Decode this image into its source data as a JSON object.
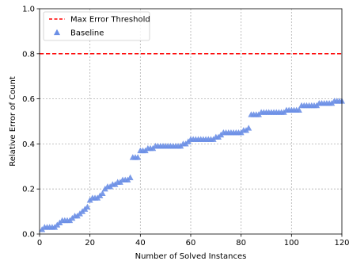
{
  "chart_data": {
    "type": "scatter",
    "xlabel": "Number of Solved Instances",
    "ylabel": "Relative Error of Count",
    "xlim": [
      0,
      120
    ],
    "ylim": [
      0,
      1.0
    ],
    "xticks": [
      "0",
      "20",
      "40",
      "60",
      "80",
      "100",
      "120"
    ],
    "yticks": [
      "0.0",
      "0.2",
      "0.4",
      "0.6",
      "0.8",
      "1.0"
    ],
    "grid": true,
    "legend_position": "top-left",
    "threshold": {
      "name": "Max Error Threshold",
      "value": 0.8,
      "color": "#ff0000",
      "style": "dashed"
    },
    "series": [
      {
        "name": "Baseline",
        "marker": "triangle",
        "color": "#6b8fe6",
        "x": [
          1,
          2,
          3,
          4,
          5,
          6,
          7,
          8,
          9,
          10,
          11,
          12,
          13,
          14,
          15,
          16,
          17,
          18,
          19,
          20,
          21,
          22,
          23,
          24,
          25,
          26,
          27,
          28,
          29,
          30,
          31,
          32,
          33,
          34,
          35,
          36,
          37,
          38,
          39,
          40,
          41,
          42,
          43,
          44,
          45,
          46,
          47,
          48,
          49,
          50,
          51,
          52,
          53,
          54,
          55,
          56,
          57,
          58,
          59,
          60,
          61,
          62,
          63,
          64,
          65,
          66,
          67,
          68,
          69,
          70,
          71,
          72,
          73,
          74,
          75,
          76,
          77,
          78,
          79,
          80,
          81,
          82,
          83,
          84,
          85,
          86,
          87,
          88,
          89,
          90,
          91,
          92,
          93,
          94,
          95,
          96,
          97,
          98,
          99,
          100,
          101,
          102,
          103,
          104,
          105,
          106,
          107,
          108,
          109,
          110,
          111,
          112,
          113,
          114,
          115,
          116,
          117,
          118,
          119,
          120
        ],
        "y": [
          0.02,
          0.03,
          0.03,
          0.03,
          0.03,
          0.03,
          0.04,
          0.05,
          0.06,
          0.06,
          0.06,
          0.06,
          0.07,
          0.08,
          0.08,
          0.09,
          0.1,
          0.11,
          0.12,
          0.15,
          0.16,
          0.16,
          0.16,
          0.17,
          0.18,
          0.2,
          0.21,
          0.21,
          0.22,
          0.22,
          0.23,
          0.23,
          0.24,
          0.24,
          0.24,
          0.25,
          0.34,
          0.34,
          0.34,
          0.37,
          0.37,
          0.37,
          0.38,
          0.38,
          0.38,
          0.39,
          0.39,
          0.39,
          0.39,
          0.39,
          0.39,
          0.39,
          0.39,
          0.39,
          0.39,
          0.39,
          0.4,
          0.4,
          0.41,
          0.42,
          0.42,
          0.42,
          0.42,
          0.42,
          0.42,
          0.42,
          0.42,
          0.42,
          0.42,
          0.43,
          0.43,
          0.44,
          0.45,
          0.45,
          0.45,
          0.45,
          0.45,
          0.45,
          0.45,
          0.45,
          0.46,
          0.46,
          0.47,
          0.53,
          0.53,
          0.53,
          0.53,
          0.54,
          0.54,
          0.54,
          0.54,
          0.54,
          0.54,
          0.54,
          0.54,
          0.54,
          0.54,
          0.55,
          0.55,
          0.55,
          0.55,
          0.55,
          0.55,
          0.57,
          0.57,
          0.57,
          0.57,
          0.57,
          0.57,
          0.57,
          0.58,
          0.58,
          0.58,
          0.58,
          0.58,
          0.58,
          0.59,
          0.59,
          0.59,
          0.59
        ]
      }
    ]
  }
}
